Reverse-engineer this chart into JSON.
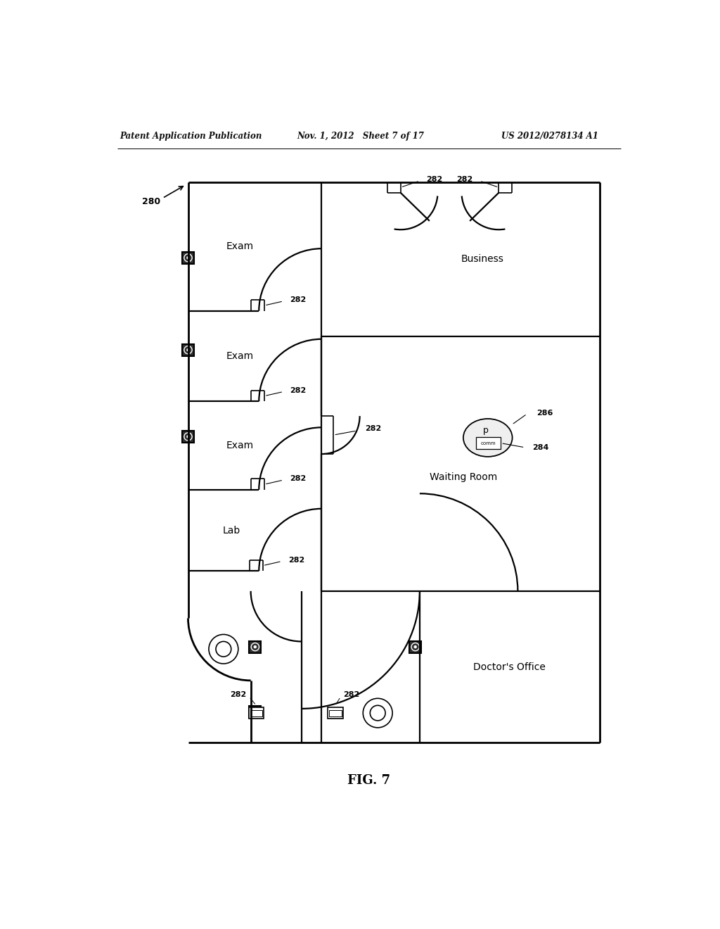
{
  "header_left": "Patent Application Publication",
  "header_mid": "Nov. 1, 2012   Sheet 7 of 17",
  "header_right": "US 2012/0278134 A1",
  "fig_label": "FIG. 7",
  "bg_color": "#ffffff",
  "line_color": "#000000",
  "label_280": "280",
  "label_282": "282",
  "label_284": "284",
  "label_286": "286",
  "room_exam1": "Exam",
  "room_exam2": "Exam",
  "room_exam3": "Exam",
  "room_lab": "Lab",
  "room_business": "Business",
  "room_waiting": "Waiting Room",
  "room_doctors": "Doctor's Office"
}
